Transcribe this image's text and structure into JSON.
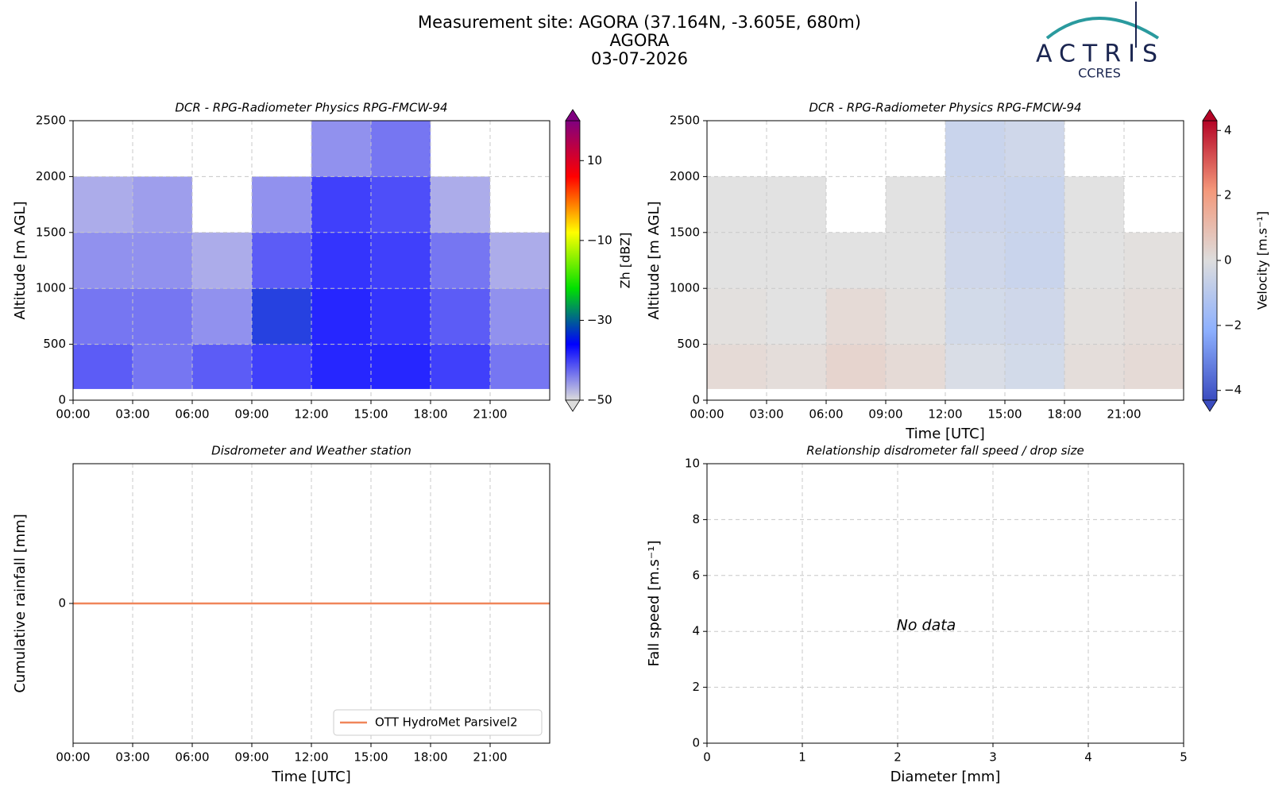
{
  "header": {
    "title": [
      "Measurement site: AGORA (37.164N, -3.605E, 680m)",
      "AGORA",
      "03-07-2026"
    ],
    "logo": "ACTRIS",
    "logo_subtitle": "CCRES"
  },
  "chart_data": [
    {
      "type": "heatmap",
      "title": "DCR - RPG-Radiometer Physics RPG-FMCW-94",
      "ylabel": "Altitude [m AGL]",
      "x": [
        0,
        3,
        6,
        9,
        12,
        15,
        18,
        21,
        24
      ],
      "y": [
        100,
        500,
        1000,
        1500,
        2000,
        2500
      ],
      "z": [
        [
          -40,
          -42,
          -40,
          -38,
          -36,
          -36,
          -38,
          -42
        ],
        [
          -42,
          -42,
          -44,
          -34,
          -36,
          -37,
          -40,
          -44
        ],
        [
          -44,
          -44,
          -46,
          -40,
          -37,
          -38,
          -42,
          -46
        ],
        [
          -46,
          -45,
          null,
          -44,
          -38,
          -39,
          -46,
          null
        ],
        [
          null,
          null,
          null,
          null,
          -44,
          -42,
          null,
          null
        ]
      ],
      "xlim": [
        0,
        24
      ],
      "xticks": [
        {
          "value": 0,
          "label": "00:00"
        },
        {
          "value": 3,
          "label": "03:00"
        },
        {
          "value": 6,
          "label": "06:00"
        },
        {
          "value": 9,
          "label": "09:00"
        },
        {
          "value": 12,
          "label": "12:00"
        },
        {
          "value": 15,
          "label": "15:00"
        },
        {
          "value": 18,
          "label": "18:00"
        },
        {
          "value": 21,
          "label": "21:00"
        }
      ],
      "ylim": [
        0,
        2500
      ],
      "yticks": [
        0,
        500,
        1000,
        1500,
        2000,
        2500
      ],
      "grid": true,
      "colorbar": {
        "label": "Zh [dBZ]",
        "zlim": [
          -50,
          20
        ],
        "ticks": [
          {
            "value": -50,
            "label": "−50"
          },
          {
            "value": -30,
            "label": "−30"
          },
          {
            "value": -10,
            "label": "−10"
          },
          10
        ],
        "extend": "both",
        "cmap": [
          "#dcdcdc",
          "#0000ff",
          "#00e000",
          "#ffff00",
          "#ff0000",
          "#800080"
        ]
      }
    },
    {
      "type": "heatmap",
      "title": "DCR - RPG-Radiometer Physics RPG-FMCW-94",
      "ylabel": "Altitude [m AGL]",
      "xlabel": "Time [UTC]",
      "x": [
        0,
        3,
        6,
        9,
        12,
        15,
        18,
        21,
        24
      ],
      "y": [
        100,
        500,
        1000,
        1500,
        2000,
        2500
      ],
      "z": [
        [
          0.3,
          0.2,
          0.5,
          0.3,
          -0.3,
          -0.5,
          0.2,
          0.3
        ],
        [
          0.1,
          0,
          0.3,
          0.1,
          -0.5,
          -0.6,
          0.1,
          0.2
        ],
        [
          0,
          0,
          0,
          0,
          -0.6,
          -0.8,
          0,
          0.1
        ],
        [
          0,
          0,
          null,
          0,
          -0.7,
          -0.8,
          0,
          null
        ],
        [
          null,
          null,
          null,
          null,
          -0.8,
          -0.6,
          null,
          null
        ]
      ],
      "xlim": [
        0,
        24
      ],
      "xticks": [
        {
          "value": 0,
          "label": "00:00"
        },
        {
          "value": 3,
          "label": "03:00"
        },
        {
          "value": 6,
          "label": "06:00"
        },
        {
          "value": 9,
          "label": "09:00"
        },
        {
          "value": 12,
          "label": "12:00"
        },
        {
          "value": 15,
          "label": "15:00"
        },
        {
          "value": 18,
          "label": "18:00"
        },
        {
          "value": 21,
          "label": "21:00"
        }
      ],
      "ylim": [
        0,
        2500
      ],
      "yticks": [
        0,
        500,
        1000,
        1500,
        2000,
        2500
      ],
      "grid": true,
      "colorbar": {
        "label": "Velocity [m.s⁻¹]",
        "zlim": [
          -4.3,
          4.3
        ],
        "ticks": [
          {
            "value": -4,
            "label": "−4"
          },
          {
            "value": -2,
            "label": "−2"
          },
          0,
          2,
          4
        ],
        "extend": "both",
        "cmap": [
          "#3b4cc0",
          "#8db0fe",
          "#dddddd",
          "#f4987a",
          "#b40426"
        ]
      }
    },
    {
      "type": "line",
      "title": "Disdrometer and Weather station",
      "ylabel": "Cumulative rainfall [mm]",
      "xlabel": "Time [UTC]",
      "x": [
        0,
        24
      ],
      "series": [
        {
          "name": "OTT HydroMet Parsivel2",
          "color": "#f0865a",
          "values": [
            0,
            0
          ]
        }
      ],
      "xlim": [
        0,
        24
      ],
      "xticks": [
        {
          "value": 0,
          "label": "00:00"
        },
        {
          "value": 3,
          "label": "03:00"
        },
        {
          "value": 6,
          "label": "06:00"
        },
        {
          "value": 9,
          "label": "09:00"
        },
        {
          "value": 12,
          "label": "12:00"
        },
        {
          "value": 15,
          "label": "15:00"
        },
        {
          "value": 18,
          "label": "18:00"
        },
        {
          "value": 21,
          "label": "21:00"
        }
      ],
      "ylim": [
        -0.055,
        0.055
      ],
      "yticks": [
        0
      ],
      "grid": true,
      "legend": "lower right"
    },
    {
      "type": "scatter",
      "title": "Relationship disdrometer fall speed / drop size",
      "ylabel": "Fall speed [m.s⁻¹]",
      "xlabel": "Diameter [mm]",
      "annotation": "No data",
      "xlim": [
        0,
        5
      ],
      "xticks": [
        0,
        1,
        2,
        3,
        4,
        5
      ],
      "ylim": [
        0,
        10
      ],
      "yticks": [
        0,
        2,
        4,
        6,
        8,
        10
      ],
      "grid": true
    }
  ]
}
